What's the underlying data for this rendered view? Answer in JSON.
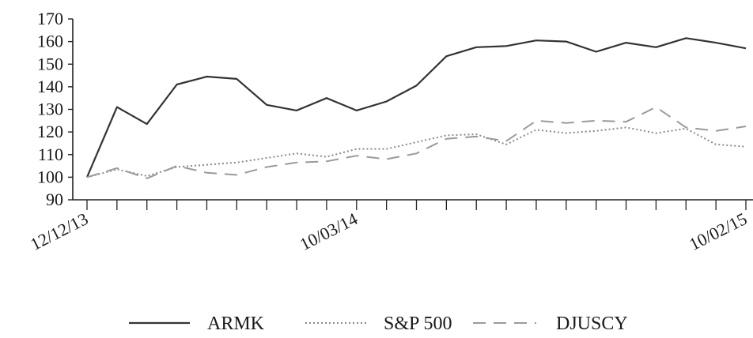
{
  "chart_data": {
    "type": "line",
    "title": "",
    "xlabel": "",
    "ylabel": "",
    "ylim": [
      90,
      170
    ],
    "yticks": [
      90,
      100,
      110,
      120,
      130,
      140,
      150,
      160,
      170
    ],
    "x_tick_labels": [
      "12/12/13",
      "10/03/14",
      "10/02/15"
    ],
    "x_tick_label_indices": [
      0,
      9,
      22
    ],
    "n_points": 23,
    "legend_position": "bottom",
    "grid": false,
    "series": [
      {
        "name": "ARMK",
        "style": "solid",
        "color": "#333333",
        "values": [
          100,
          131,
          123.5,
          141,
          144.5,
          143.5,
          132,
          129.5,
          135,
          129.5,
          133.5,
          140.5,
          153.5,
          157.5,
          158,
          160.5,
          160,
          155.5,
          159.5,
          157.5,
          161.5,
          159.5,
          157
        ]
      },
      {
        "name": "S&P 500",
        "style": "dotted",
        "color": "#8a8a8a",
        "values": [
          100,
          103.5,
          100.5,
          104.5,
          105.5,
          106.5,
          108.5,
          110.5,
          109,
          112.5,
          112.5,
          115.5,
          118.5,
          119,
          114.5,
          121,
          119.5,
          120.5,
          122,
          119.5,
          121.5,
          114.5,
          113.5
        ]
      },
      {
        "name": "DJUSCY",
        "style": "dashed",
        "color": "#9a9a9a",
        "values": [
          100,
          104,
          99.5,
          105,
          102,
          101,
          104.5,
          106.5,
          107,
          109.5,
          108,
          110.5,
          117,
          118,
          116,
          125,
          124,
          125,
          124.5,
          131,
          122,
          120.5,
          122.5
        ]
      }
    ]
  }
}
